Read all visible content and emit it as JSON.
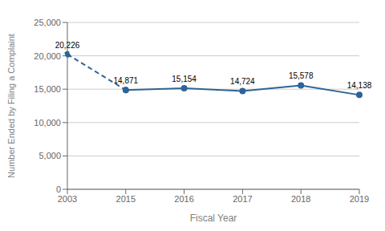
{
  "chart_data": {
    "type": "line",
    "title": "",
    "xlabel": "Fiscal Year",
    "ylabel": "Number Ended by Filing a Complaint",
    "categories": [
      "2003",
      "2015",
      "2016",
      "2017",
      "2018",
      "2019"
    ],
    "series": [
      {
        "color": "#2E6496",
        "line_style": "dashed",
        "marker": "circle",
        "values": [
          20226,
          14871,
          null,
          null,
          null,
          null
        ],
        "value_labels": [
          "20,226",
          null,
          null,
          null,
          null,
          null
        ]
      },
      {
        "color": "#2E6496",
        "line_style": "solid",
        "marker": "circle",
        "values": [
          null,
          14871,
          15154,
          14724,
          15578,
          14138
        ],
        "value_labels": [
          null,
          "14,871",
          "15,154",
          "14,724",
          "15,578",
          "14,138"
        ]
      }
    ],
    "ylim": [
      0,
      25000
    ],
    "yticks": [
      0,
      {
        "value": 5000,
        "label": "5,000"
      },
      {
        "value": 10000,
        "label": "10,000"
      },
      {
        "value": 15000,
        "label": "15,000"
      },
      {
        "value": 20000,
        "label": "20,000"
      },
      {
        "value": 25000,
        "label": "25,000"
      }
    ],
    "grid": true,
    "data_labels": true
  }
}
